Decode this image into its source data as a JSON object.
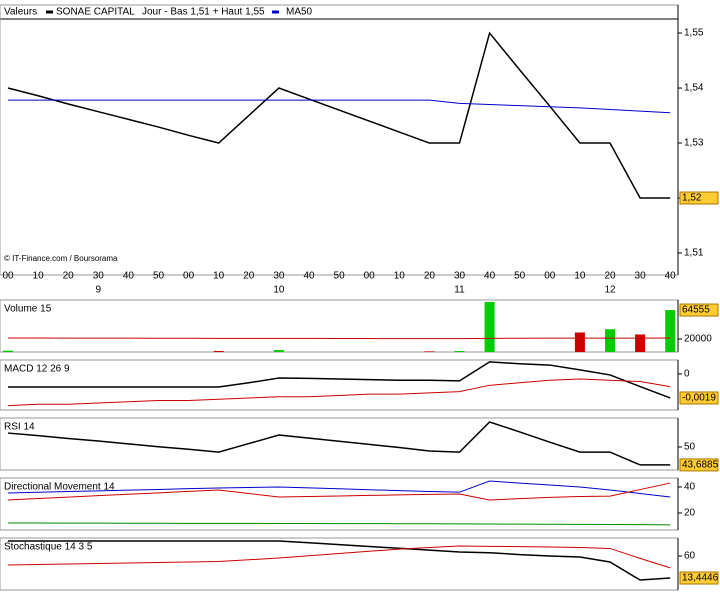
{
  "chart_data": [
    {
      "type": "line",
      "legend_prefix": "Valeurs",
      "subtitle": "Jour - Bas 1,51 + Haut 1,55",
      "credit": "© IT-Finance.com / Boursorama",
      "categories": [
        "00",
        "10",
        "20",
        "30",
        "40",
        "50",
        "00",
        "10",
        "20",
        "30",
        "40",
        "50",
        "00",
        "10",
        "20",
        "30",
        "40",
        "50",
        "00",
        "10",
        "20",
        "30",
        "40"
      ],
      "day_labels": [
        null,
        null,
        null,
        "9",
        null,
        null,
        null,
        null,
        null,
        "10",
        null,
        null,
        null,
        null,
        null,
        "11",
        null,
        null,
        null,
        null,
        "12",
        null,
        null
      ],
      "series": [
        {
          "name": "SONAE CAPITAL",
          "color": "#000000",
          "values": [
            1.54,
            1.5386,
            1.5371,
            1.5357,
            1.5343,
            1.5329,
            1.5314,
            1.53,
            1.535,
            1.54,
            1.538,
            1.536,
            1.534,
            1.532,
            1.53,
            1.53,
            1.55,
            1.5433,
            1.5367,
            1.53,
            1.53,
            1.52,
            1.52
          ]
        },
        {
          "name": "MA50",
          "color": "#0000cc",
          "values": [
            1.5378,
            1.5378,
            1.5378,
            1.5378,
            1.5378,
            1.5378,
            1.5378,
            1.5378,
            1.5378,
            1.5378,
            1.5378,
            1.5378,
            1.5378,
            1.5378,
            1.5378,
            1.5372,
            1.537,
            1.5368,
            1.5366,
            1.5364,
            1.5361,
            1.5358,
            1.5355
          ]
        }
      ],
      "ylim": [
        1.506,
        1.5551
      ],
      "yticks": [
        {
          "value": 1.55,
          "label": "1,55"
        },
        {
          "value": 1.54,
          "label": "1,54"
        },
        {
          "value": 1.53,
          "label": "1,53"
        },
        {
          "value": 1.52,
          "label": "1,52"
        },
        {
          "value": 1.51,
          "label": "1,51"
        }
      ],
      "last_label": {
        "value": 1.52,
        "label": "1,52"
      }
    },
    {
      "type": "bar",
      "title": "Volume 15",
      "series": [
        {
          "type": "bar",
          "color": "#00cc00",
          "values": [
            2000,
            null,
            null,
            null,
            null,
            null,
            null,
            null,
            null,
            3000,
            null,
            null,
            null,
            null,
            null,
            1500,
            77000,
            null,
            null,
            null,
            35000,
            null,
            64555
          ]
        },
        {
          "type": "bar",
          "color": "#cc0000",
          "values": [
            null,
            null,
            null,
            null,
            null,
            null,
            null,
            1500,
            null,
            null,
            null,
            null,
            null,
            null,
            1000,
            null,
            null,
            null,
            null,
            30000,
            null,
            27000,
            null
          ]
        },
        {
          "type": "line",
          "color": "#cc0000",
          "values": [
            21500,
            21500,
            21400,
            21300,
            21300,
            21200,
            21100,
            21000,
            21000,
            21000,
            20900,
            20800,
            20700,
            20600,
            20500,
            20500,
            21000,
            21200,
            21300,
            21300,
            21400,
            21400,
            21500
          ]
        }
      ],
      "ylim": [
        0,
        80000
      ],
      "yticks": [
        20000
      ],
      "last_label": 64555
    },
    {
      "type": "line",
      "title": "MACD 12 26 9",
      "series": [
        {
          "color": "#000000",
          "values": [
            -0.00103,
            -0.00103,
            -0.00103,
            -0.00103,
            -0.00103,
            -0.00103,
            -0.00103,
            -0.00103,
            -0.0007,
            -0.00032,
            -0.00035,
            -0.0004,
            -0.00045,
            -0.0005,
            -0.0005,
            -0.00055,
            0.00095,
            0.0008,
            0.0007,
            0.00032,
            -8e-05,
            -0.001,
            -0.0019
          ]
        },
        {
          "color": "#cc0000",
          "values": [
            -0.0025,
            -0.0024,
            -0.0024,
            -0.0023,
            -0.0022,
            -0.0021,
            -0.0021,
            -0.002,
            -0.0019,
            -0.0018,
            -0.0018,
            -0.0017,
            -0.0016,
            -0.0016,
            -0.0015,
            -0.0014,
            -0.0009,
            -0.0007,
            -0.0005,
            -0.0004,
            -0.0005,
            -0.0006,
            -0.001
          ]
        }
      ],
      "ylim": [
        -0.00285,
        0.0011
      ],
      "yticks": [
        0
      ],
      "last_label": {
        "value": -0.0019,
        "label": "-0,0019"
      }
    },
    {
      "type": "line",
      "title": "RSI 14",
      "series": [
        {
          "color": "#000000",
          "values": [
            54.9,
            54,
            53,
            52.1,
            51.1,
            50.1,
            49.2,
            48.2,
            51.2,
            54.2,
            53.1,
            52,
            50.9,
            49.8,
            48.6,
            48.2,
            58.8,
            55.3,
            51.7,
            48.2,
            48.2,
            43.69,
            43.6885
          ]
        }
      ],
      "ylim": [
        41.9,
        60.2
      ],
      "yticks": [
        50
      ],
      "last_label": {
        "value": 43.6885,
        "label": "43,6885"
      }
    },
    {
      "type": "line",
      "title": "Directional Movement 14",
      "series": [
        {
          "color": "#0000cc",
          "values": [
            35.4,
            35.9,
            36.5,
            37,
            37.6,
            38.1,
            38.7,
            39.2,
            39.6,
            40,
            39.3,
            38.6,
            37.9,
            37.2,
            36.5,
            36,
            44.6,
            43,
            41.5,
            40,
            37.7,
            35,
            32.3
          ]
        },
        {
          "color": "#cc0000",
          "values": [
            30,
            31.1,
            32.2,
            33.3,
            34.4,
            35.5,
            36.6,
            37.7,
            35,
            32.3,
            32.7,
            33.1,
            33.5,
            33.9,
            34.3,
            34.6,
            30,
            31,
            32,
            32.7,
            33,
            38,
            43
          ]
        },
        {
          "color": "#008800",
          "values": [
            12.3,
            12.3,
            12.2,
            12.2,
            12.1,
            12.1,
            12,
            12,
            12,
            11.9,
            11.9,
            11.8,
            11.8,
            11.7,
            11.7,
            11.6,
            11.5,
            11.4,
            11.3,
            11.2,
            11.1,
            11,
            10.8
          ]
        }
      ],
      "ylim": [
        6.9,
        46.9
      ],
      "yticks": [
        40,
        20
      ]
    },
    {
      "type": "line",
      "title": "Stochastique 14 3 5",
      "series": [
        {
          "color": "#000000",
          "values": [
            91.7,
            91.7,
            91.7,
            91.7,
            91.7,
            91.7,
            91.7,
            91.7,
            91.7,
            91.7,
            88,
            84,
            80,
            76.5,
            72.5,
            68.5,
            67,
            63,
            60,
            57.9,
            47.3,
            9.2,
            13.4446
          ]
        },
        {
          "color": "#cc0000",
          "values": [
            41,
            42,
            43,
            44.1,
            45.2,
            46.3,
            47.4,
            48.5,
            52,
            55.8,
            60.5,
            65.2,
            70,
            74.5,
            78,
            81.2,
            80.5,
            79.8,
            79,
            78,
            76,
            55,
            34.9
          ]
        }
      ],
      "ylim": [
        -11.9,
        98.1
      ],
      "yticks": [
        60
      ],
      "last_label": {
        "value": 13.4446,
        "label": "13,4446"
      }
    }
  ]
}
